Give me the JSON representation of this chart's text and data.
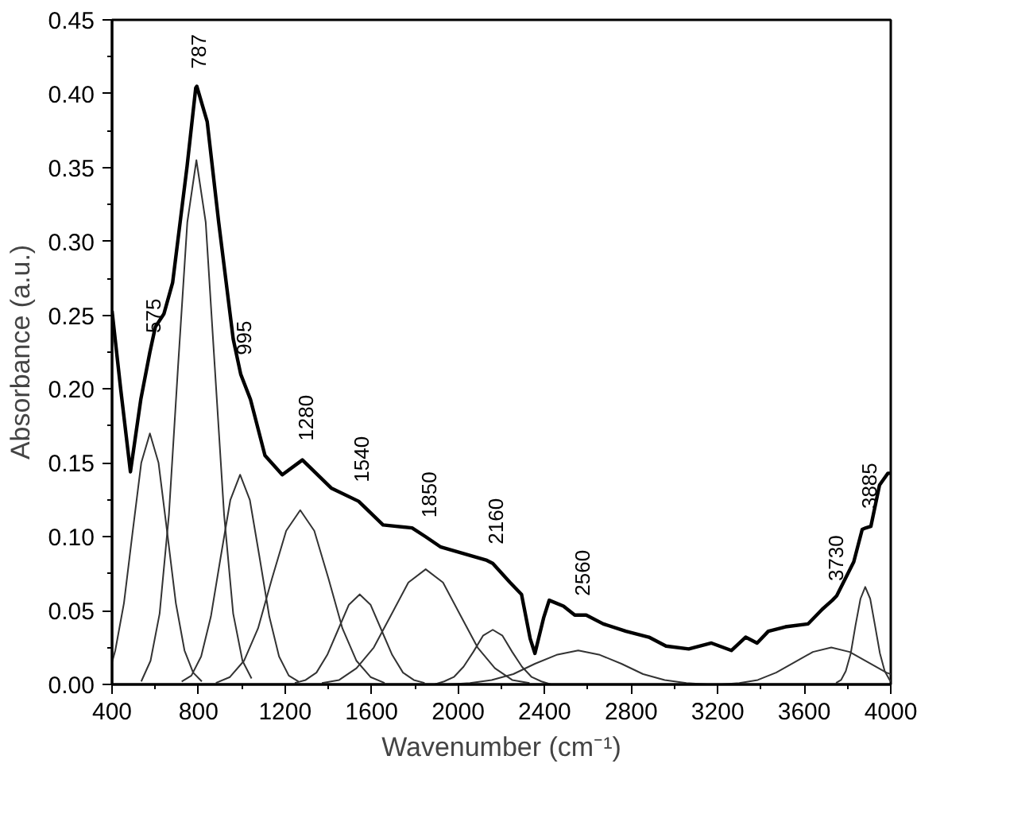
{
  "chart_data": {
    "type": "line",
    "xlabel": "Wavenumber (cm⁻¹)",
    "ylabel": "Absorbance (a.u.)",
    "xlim": [
      400,
      4000
    ],
    "ylim": [
      0,
      0.45
    ],
    "xticks": [
      400,
      800,
      1200,
      1600,
      2000,
      2400,
      2800,
      3200,
      3600,
      4000
    ],
    "yticks": [
      {
        "value": 0,
        "label": "0.00"
      },
      {
        "value": 0.05,
        "label": "0.05"
      },
      {
        "value": 0.1,
        "label": "0.10"
      },
      {
        "value": 0.15,
        "label": "0.15"
      },
      {
        "value": 0.2,
        "label": "0.20"
      },
      {
        "value": 0.25,
        "label": "0.25"
      },
      {
        "value": 0.3,
        "label": "0.30"
      },
      {
        "value": 0.35,
        "label": "0.35"
      },
      {
        "value": 0.4,
        "label": "0.40"
      },
      {
        "value": 0.45,
        "label": "0.45"
      }
    ],
    "grid": false,
    "marker": "none",
    "line_style": "solid",
    "series": [
      {
        "color": "#000000",
        "x": [
          400,
          440,
          485,
          533,
          575,
          600,
          640,
          680,
          747,
          787,
          792,
          840,
          893,
          960,
          995,
          1040,
          1107,
          1187,
          1280,
          1413,
          1540,
          1653,
          1787,
          1850,
          1920,
          2133,
          2160,
          2240,
          2293,
          2333,
          2355,
          2395,
          2421,
          2487,
          2539,
          2560,
          2592,
          2671,
          2776,
          2882,
          2961,
          3066,
          3171,
          3263,
          3329,
          3382,
          3434,
          3513,
          3618,
          3684,
          3730,
          3750,
          3829,
          3868,
          3885,
          3908,
          3948,
          3987,
          4000
        ],
        "values": [
          0.253,
          0.2,
          0.144,
          0.193,
          0.225,
          0.242,
          0.251,
          0.272,
          0.351,
          0.404,
          0.405,
          0.381,
          0.313,
          0.234,
          0.21,
          0.193,
          0.155,
          0.142,
          0.152,
          0.133,
          0.124,
          0.108,
          0.106,
          0.1,
          0.093,
          0.084,
          0.082,
          0.069,
          0.061,
          0.031,
          0.021,
          0.045,
          0.057,
          0.053,
          0.047,
          0.047,
          0.047,
          0.041,
          0.036,
          0.032,
          0.026,
          0.024,
          0.028,
          0.023,
          0.032,
          0.028,
          0.036,
          0.039,
          0.041,
          0.051,
          0.057,
          0.06,
          0.083,
          0.105,
          0.106,
          0.107,
          0.135,
          0.143,
          0.143
        ]
      },
      {
        "color": "#333333",
        "x": [
          400,
          415,
          455,
          495,
          535,
          575,
          615,
          655,
          695,
          735,
          775,
          815
        ],
        "values": [
          0.015,
          0.023,
          0.055,
          0.103,
          0.15,
          0.17,
          0.15,
          0.103,
          0.055,
          0.023,
          0.008,
          0.002
        ]
      },
      {
        "color": "#333333",
        "x": [
          535,
          578,
          620,
          663,
          705,
          748,
          790,
          833,
          875,
          918,
          960,
          1003,
          1045
        ],
        "values": [
          0.002,
          0.016,
          0.048,
          0.115,
          0.215,
          0.313,
          0.355,
          0.313,
          0.215,
          0.115,
          0.048,
          0.016,
          0.004
        ]
      },
      {
        "color": "#333333",
        "x": [
          722,
          767,
          812,
          857,
          902,
          947,
          992,
          1037,
          1082,
          1127,
          1172,
          1217,
          1262
        ],
        "values": [
          0.002,
          0.006,
          0.019,
          0.046,
          0.086,
          0.125,
          0.142,
          0.125,
          0.086,
          0.046,
          0.019,
          0.006,
          0.002
        ]
      },
      {
        "color": "#333333",
        "x": [
          880,
          945,
          1010,
          1075,
          1140,
          1205,
          1270,
          1335,
          1400,
          1465,
          1530,
          1595,
          1660
        ],
        "values": [
          0.001,
          0.005,
          0.016,
          0.038,
          0.072,
          0.104,
          0.118,
          0.104,
          0.072,
          0.038,
          0.016,
          0.005,
          0.001
        ]
      },
      {
        "color": "#333333",
        "x": [
          1245,
          1295,
          1345,
          1395,
          1445,
          1495,
          1545,
          1595,
          1645,
          1695,
          1745,
          1795,
          1845
        ],
        "values": [
          0.001,
          0.003,
          0.008,
          0.02,
          0.037,
          0.054,
          0.061,
          0.054,
          0.037,
          0.02,
          0.008,
          0.003,
          0.001
        ]
      },
      {
        "color": "#333333",
        "x": [
          1370,
          1450,
          1530,
          1610,
          1690,
          1770,
          1850,
          1930,
          2010,
          2090,
          2170,
          2250,
          2330
        ],
        "values": [
          0.001,
          0.003,
          0.011,
          0.025,
          0.047,
          0.069,
          0.078,
          0.069,
          0.047,
          0.025,
          0.011,
          0.003,
          0.001
        ]
      },
      {
        "color": "#333333",
        "x": [
          1890,
          1935,
          1980,
          2025,
          2070,
          2115,
          2160,
          2205,
          2250,
          2295,
          2340,
          2385,
          2430
        ],
        "values": [
          0.0,
          0.002,
          0.005,
          0.012,
          0.022,
          0.033,
          0.037,
          0.033,
          0.022,
          0.012,
          0.005,
          0.002,
          0.0
        ]
      },
      {
        "color": "#333333",
        "x": [
          1955,
          2055,
          2155,
          2255,
          2355,
          2455,
          2555,
          2655,
          2755,
          2855,
          2955,
          3055,
          3155
        ],
        "values": [
          0.0,
          0.001,
          0.003,
          0.007,
          0.014,
          0.02,
          0.023,
          0.02,
          0.014,
          0.007,
          0.003,
          0.001,
          0.0
        ]
      },
      {
        "color": "#333333",
        "x": [
          3215,
          3300,
          3385,
          3470,
          3555,
          3640,
          3725,
          3810,
          3895,
          3980,
          4000
        ],
        "values": [
          0.0,
          0.001,
          0.003,
          0.008,
          0.015,
          0.022,
          0.025,
          0.022,
          0.015,
          0.008,
          0.007
        ]
      },
      {
        "color": "#333333",
        "x": [
          3747,
          3770,
          3792,
          3815,
          3837,
          3860,
          3882,
          3905,
          3927,
          3950,
          3972,
          3995,
          4000
        ],
        "values": [
          0.001,
          0.003,
          0.009,
          0.021,
          0.04,
          0.058,
          0.066,
          0.058,
          0.04,
          0.021,
          0.009,
          0.003,
          0.002
        ]
      }
    ],
    "annotations": [
      {
        "text": "575",
        "x": 575,
        "y": 0.225
      },
      {
        "text": "787",
        "x": 787,
        "y": 0.404
      },
      {
        "text": "995",
        "x": 995,
        "y": 0.21
      },
      {
        "text": "1280",
        "x": 1280,
        "y": 0.152
      },
      {
        "text": "1540",
        "x": 1540,
        "y": 0.124
      },
      {
        "text": "1850",
        "x": 1850,
        "y": 0.1
      },
      {
        "text": "2160",
        "x": 2160,
        "y": 0.082
      },
      {
        "text": "2560",
        "x": 2560,
        "y": 0.047
      },
      {
        "text": "3730",
        "x": 3730,
        "y": 0.057
      },
      {
        "text": "3885",
        "x": 3885,
        "y": 0.106
      }
    ]
  }
}
